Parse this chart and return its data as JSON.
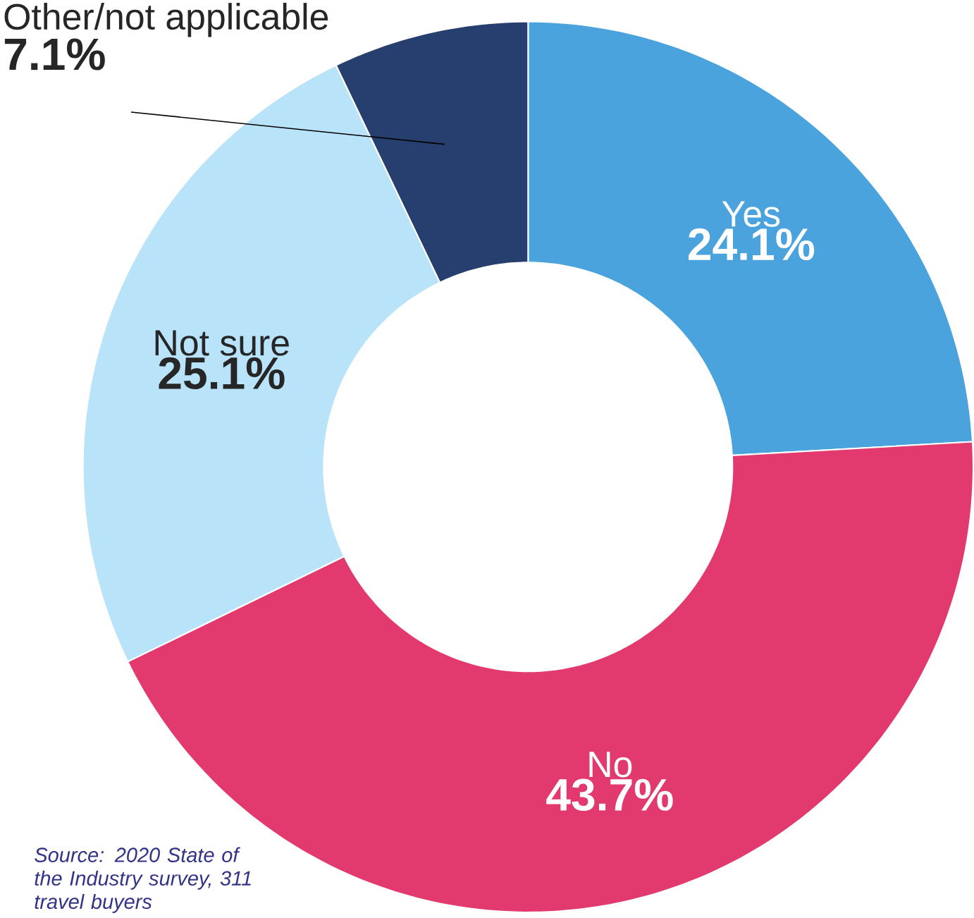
{
  "chart_data": {
    "type": "donut",
    "categories": [
      "Yes",
      "No",
      "Not sure",
      "Other/not applicable"
    ],
    "values": [
      24.1,
      43.7,
      25.1,
      7.1
    ],
    "colors": [
      "#4aa3dc",
      "#e23a6e",
      "#b9e3f8",
      "#263f6e"
    ],
    "value_labels": [
      "24.1%",
      "43.7%",
      "25.1%",
      "7.1%"
    ],
    "annotations": [
      "Source: 2020 State of the Industry survey, 311 travel buyers"
    ]
  }
}
